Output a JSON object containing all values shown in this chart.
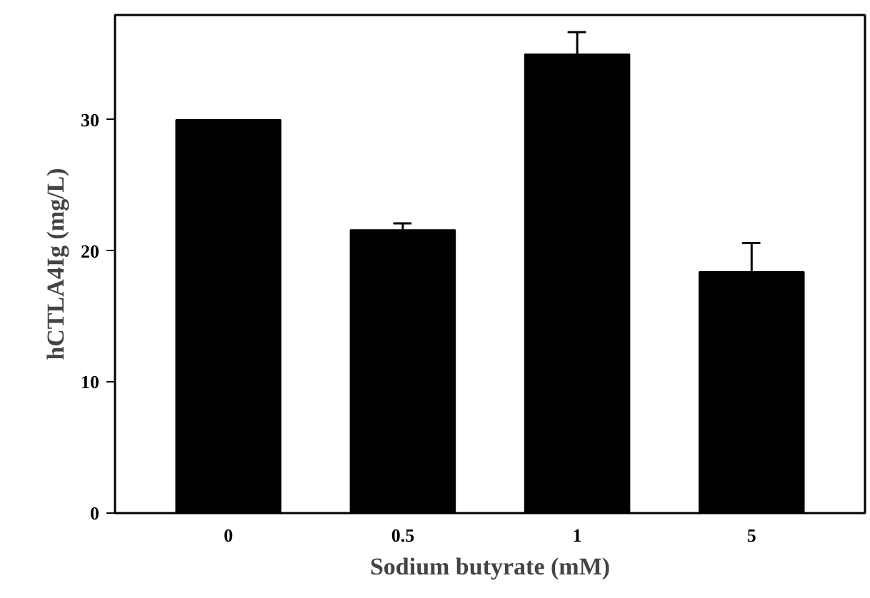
{
  "chart_data": {
    "type": "bar",
    "xlabel": "Sodium butyrate (mM)",
    "ylabel": "hCTLA4Ig (mg/L)",
    "categories": [
      "0",
      "0.5",
      "1",
      "5"
    ],
    "values": [
      30.0,
      21.6,
      35.0,
      18.4
    ],
    "errors": [
      null,
      0.5,
      1.7,
      2.2
    ],
    "color": "#000000",
    "ylim": [
      0,
      38
    ],
    "yticks": [
      0,
      10,
      20,
      30
    ],
    "grid": false
  }
}
